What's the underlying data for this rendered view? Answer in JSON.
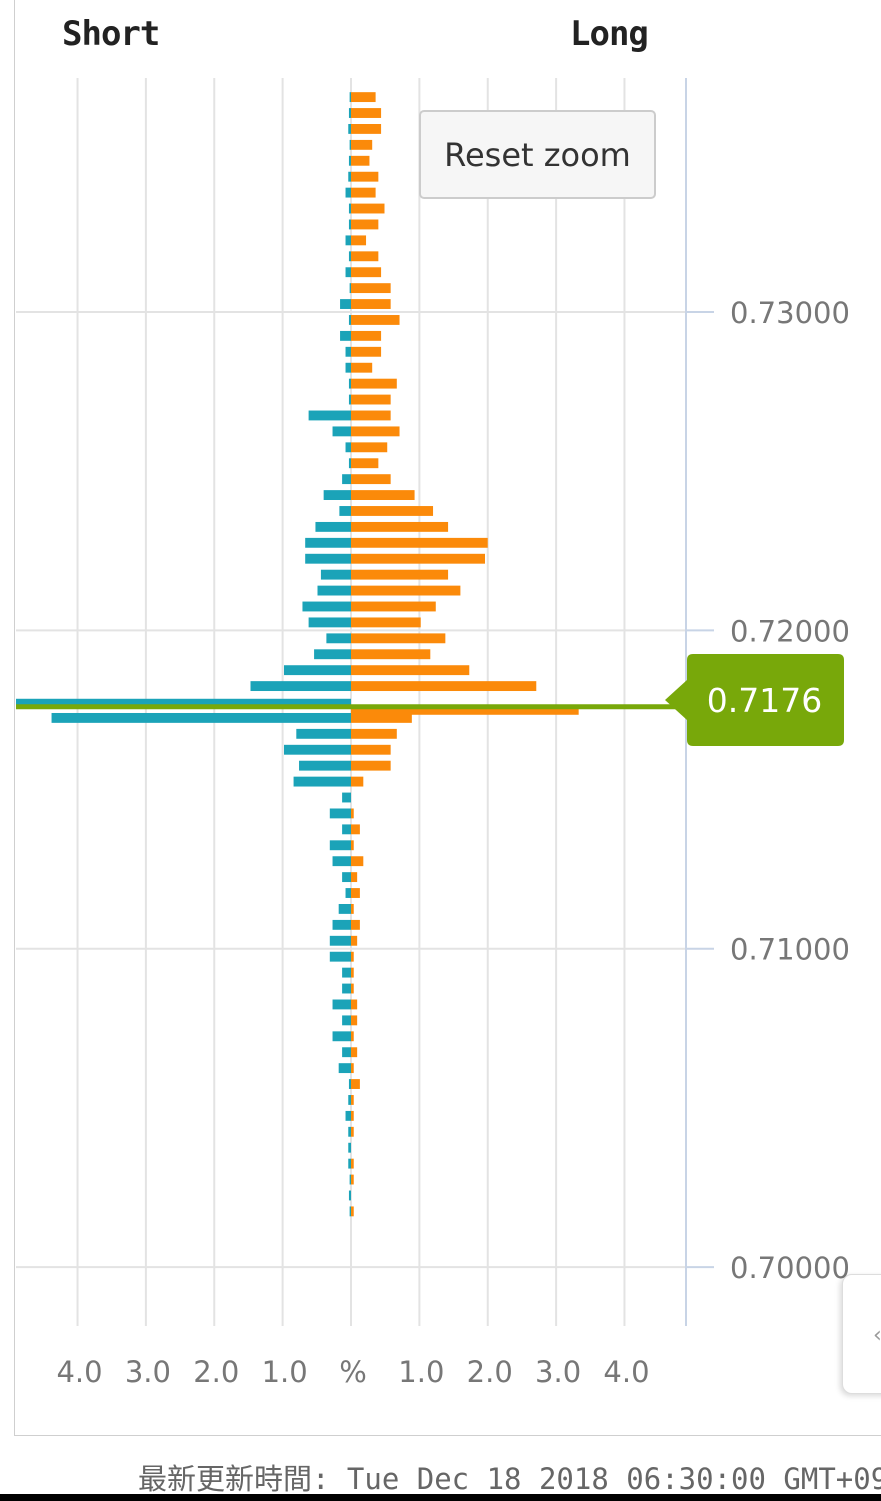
{
  "header": {
    "short_label": "Short",
    "long_label": "Long"
  },
  "reset_zoom_label": "Reset zoom",
  "current_price": {
    "label": "0.7176",
    "value": 0.7176,
    "color": "#78a80a"
  },
  "footer_text": "最新更新時間: Tue Dec 18 2018 06:30:00 GMT+09",
  "colors": {
    "short_series": "#1ba3b8",
    "long_series": "#fb8a0a",
    "grid": "#e3e3e3",
    "axis": "#c8d4e6",
    "tick_text": "#777777"
  },
  "side_handle_icon": "chevron-left-icon",
  "chart_data": {
    "type": "bar",
    "orientation": "horizontal",
    "title": "",
    "xlabel": "%",
    "ylabel": "",
    "xlim": [
      -4.9,
      4.9
    ],
    "ylim": [
      0.69815,
      0.73735
    ],
    "x_ticks": [
      -4,
      -3,
      -2,
      -1,
      0,
      1,
      2,
      3,
      4
    ],
    "x_tick_labels": [
      "4.0",
      "3.0",
      "2.0",
      "1.0",
      "%",
      "1.0",
      "2.0",
      "3.0",
      "4.0"
    ],
    "y_ticks": [
      0.7,
      0.71,
      0.72,
      0.73
    ],
    "y_tick_labels": [
      "0.70000",
      "0.71000",
      "0.72000",
      "0.73000"
    ],
    "grid": true,
    "legend": "none",
    "series": [
      {
        "side": "short",
        "color": "#1ba3b8",
        "values": [
          [
            0.7365,
            -0.02
          ],
          [
            0.736,
            -0.03
          ],
          [
            0.7355,
            -0.04
          ],
          [
            0.735,
            -0.02
          ],
          [
            0.7345,
            -0.03
          ],
          [
            0.734,
            -0.04
          ],
          [
            0.7335,
            -0.08
          ],
          [
            0.733,
            -0.03
          ],
          [
            0.7325,
            -0.03
          ],
          [
            0.732,
            -0.08
          ],
          [
            0.7315,
            -0.03
          ],
          [
            0.731,
            -0.08
          ],
          [
            0.7305,
            -0.02
          ],
          [
            0.73,
            -0.16
          ],
          [
            0.7295,
            -0.03
          ],
          [
            0.729,
            -0.16
          ],
          [
            0.7285,
            -0.08
          ],
          [
            0.728,
            -0.08
          ],
          [
            0.7275,
            -0.03
          ],
          [
            0.727,
            -0.03
          ],
          [
            0.7265,
            -0.62
          ],
          [
            0.726,
            -0.27
          ],
          [
            0.7255,
            -0.08
          ],
          [
            0.725,
            -0.03
          ],
          [
            0.7245,
            -0.13
          ],
          [
            0.724,
            -0.4
          ],
          [
            0.7235,
            -0.17
          ],
          [
            0.723,
            -0.52
          ],
          [
            0.7225,
            -0.67
          ],
          [
            0.722,
            -0.67
          ],
          [
            0.7215,
            -0.44
          ],
          [
            0.721,
            -0.49
          ],
          [
            0.7205,
            -0.71
          ],
          [
            0.72,
            -0.62
          ],
          [
            0.7195,
            -0.36
          ],
          [
            0.719,
            -0.54
          ],
          [
            0.7185,
            -0.98
          ],
          [
            0.718,
            -1.47
          ],
          [
            0.7175,
            -4.9
          ],
          [
            0.717,
            -4.38
          ],
          [
            0.7165,
            -0.8
          ],
          [
            0.716,
            -0.98
          ],
          [
            0.7155,
            -0.76
          ],
          [
            0.715,
            -0.84
          ],
          [
            0.7145,
            -0.13
          ],
          [
            0.714,
            -0.31
          ],
          [
            0.7135,
            -0.13
          ],
          [
            0.713,
            -0.31
          ],
          [
            0.7125,
            -0.27
          ],
          [
            0.712,
            -0.13
          ],
          [
            0.7115,
            -0.08
          ],
          [
            0.711,
            -0.18
          ],
          [
            0.7105,
            -0.27
          ],
          [
            0.71,
            -0.31
          ],
          [
            0.7095,
            -0.31
          ],
          [
            0.709,
            -0.13
          ],
          [
            0.7085,
            -0.13
          ],
          [
            0.708,
            -0.27
          ],
          [
            0.7075,
            -0.13
          ],
          [
            0.707,
            -0.27
          ],
          [
            0.7065,
            -0.13
          ],
          [
            0.706,
            -0.18
          ],
          [
            0.7055,
            -0.03
          ],
          [
            0.705,
            -0.04
          ],
          [
            0.7045,
            -0.08
          ],
          [
            0.704,
            -0.04
          ],
          [
            0.7035,
            -0.04
          ],
          [
            0.703,
            -0.04
          ],
          [
            0.7025,
            -0.02
          ],
          [
            0.702,
            -0.03
          ],
          [
            0.7015,
            -0.02
          ]
        ]
      },
      {
        "side": "long",
        "color": "#fb8a0a",
        "values": [
          [
            0.7365,
            0.36
          ],
          [
            0.736,
            0.44
          ],
          [
            0.7355,
            0.44
          ],
          [
            0.735,
            0.31
          ],
          [
            0.7345,
            0.27
          ],
          [
            0.734,
            0.4
          ],
          [
            0.7335,
            0.36
          ],
          [
            0.733,
            0.49
          ],
          [
            0.7325,
            0.4
          ],
          [
            0.732,
            0.22
          ],
          [
            0.7315,
            0.4
          ],
          [
            0.731,
            0.44
          ],
          [
            0.7305,
            0.58
          ],
          [
            0.73,
            0.58
          ],
          [
            0.7295,
            0.71
          ],
          [
            0.729,
            0.44
          ],
          [
            0.7285,
            0.44
          ],
          [
            0.728,
            0.31
          ],
          [
            0.7275,
            0.67
          ],
          [
            0.727,
            0.58
          ],
          [
            0.7265,
            0.58
          ],
          [
            0.726,
            0.71
          ],
          [
            0.7255,
            0.53
          ],
          [
            0.725,
            0.4
          ],
          [
            0.7245,
            0.58
          ],
          [
            0.724,
            0.93
          ],
          [
            0.7235,
            1.2
          ],
          [
            0.723,
            1.42
          ],
          [
            0.7225,
            2.0
          ],
          [
            0.722,
            1.96
          ],
          [
            0.7215,
            1.42
          ],
          [
            0.721,
            1.6
          ],
          [
            0.7205,
            1.24
          ],
          [
            0.72,
            1.02
          ],
          [
            0.7195,
            1.38
          ],
          [
            0.719,
            1.16
          ],
          [
            0.7185,
            1.73
          ],
          [
            0.718,
            2.71
          ],
          [
            0.7175,
            3.33
          ],
          [
            0.717,
            0.89
          ],
          [
            0.7165,
            0.67
          ],
          [
            0.716,
            0.58
          ],
          [
            0.7155,
            0.58
          ],
          [
            0.715,
            0.18
          ],
          [
            0.7145,
            0.0
          ],
          [
            0.714,
            0.04
          ],
          [
            0.7135,
            0.13
          ],
          [
            0.713,
            0.04
          ],
          [
            0.7125,
            0.18
          ],
          [
            0.712,
            0.09
          ],
          [
            0.7115,
            0.13
          ],
          [
            0.711,
            0.04
          ],
          [
            0.7105,
            0.13
          ],
          [
            0.71,
            0.09
          ],
          [
            0.7095,
            0.04
          ],
          [
            0.709,
            0.04
          ],
          [
            0.7085,
            0.04
          ],
          [
            0.708,
            0.09
          ],
          [
            0.7075,
            0.09
          ],
          [
            0.707,
            0.04
          ],
          [
            0.7065,
            0.09
          ],
          [
            0.706,
            0.04
          ],
          [
            0.7055,
            0.13
          ],
          [
            0.705,
            0.04
          ],
          [
            0.7045,
            0.04
          ],
          [
            0.704,
            0.04
          ],
          [
            0.7035,
            0.0
          ],
          [
            0.703,
            0.04
          ],
          [
            0.7025,
            0.04
          ],
          [
            0.702,
            0.0
          ],
          [
            0.7015,
            0.04
          ]
        ]
      }
    ]
  }
}
